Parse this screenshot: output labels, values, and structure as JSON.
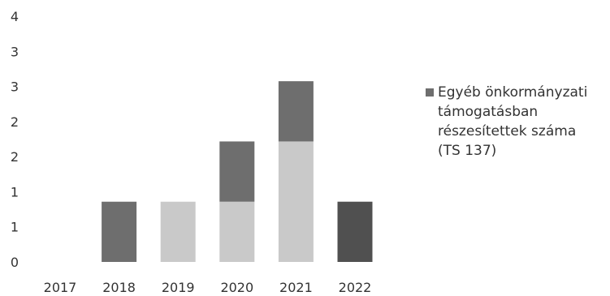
{
  "chart_data": {
    "type": "bar",
    "stacked": true,
    "categories": [
      "2017",
      "2018",
      "2019",
      "2020",
      "2021",
      "2022"
    ],
    "y_ticks": [
      "0",
      "1",
      "1",
      "2",
      "2",
      "3",
      "3",
      "4"
    ],
    "ylim": [
      0,
      3.5
    ],
    "grid": false,
    "legend_position": "right",
    "series": [
      {
        "name": "",
        "color": "#c9c9c9",
        "values": [
          0,
          0,
          1,
          1,
          2,
          0
        ]
      },
      {
        "name": "Egyéb önkormányzati támogatásban részesítettek száma (TS 137)",
        "color": "#6e6e6e",
        "values": [
          0,
          1,
          0,
          1,
          1,
          0
        ]
      },
      {
        "name": "",
        "color": "#505050",
        "values": [
          0,
          0,
          0,
          0,
          0,
          1
        ]
      }
    ]
  },
  "legend": {
    "lines": [
      "Egyéb önkormányzati",
      "támogatásban",
      "részesítettek száma",
      "(TS 137)"
    ],
    "color": "#6e6e6e"
  }
}
